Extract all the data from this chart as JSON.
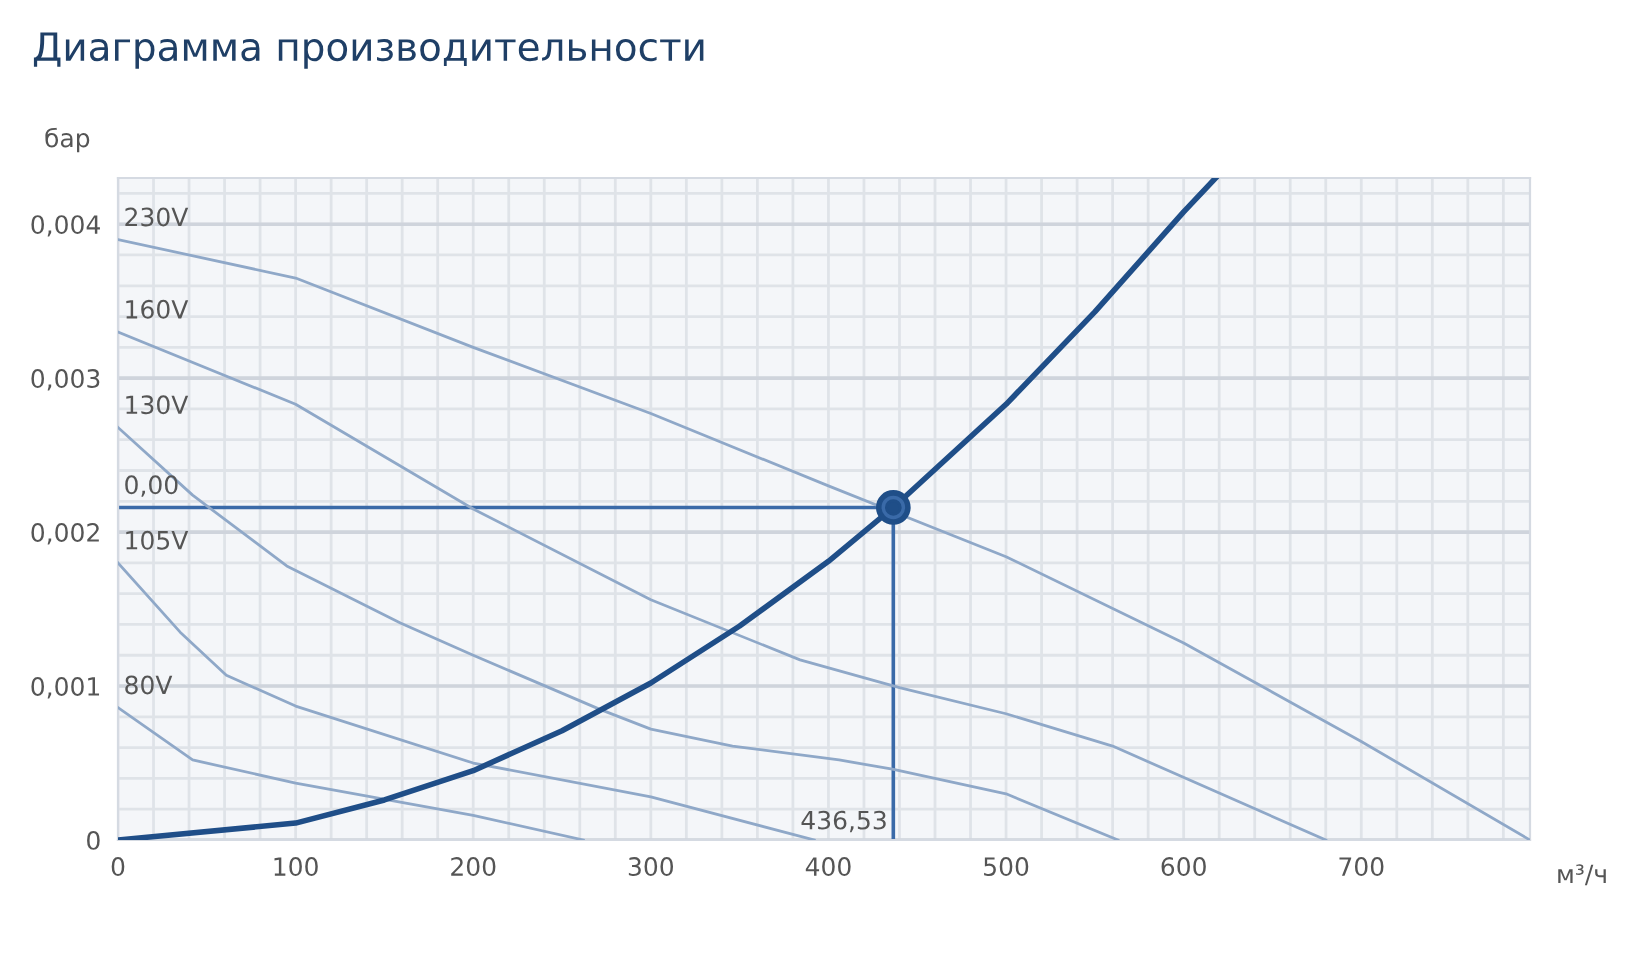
{
  "chart_data": {
    "type": "line",
    "title": "Диаграмма производительности",
    "xlabel": "м³/ч",
    "ylabel": "бар",
    "xlim": [
      0,
      795
    ],
    "ylim": [
      0,
      0.0043
    ],
    "xticks": [
      0,
      100,
      200,
      300,
      400,
      500,
      600,
      700
    ],
    "yticks": [
      0,
      {
        "value": 0.001,
        "label": "0,001"
      },
      {
        "value": 0.002,
        "label": "0,002"
      },
      {
        "value": 0.003,
        "label": "0,003"
      },
      {
        "value": 0.004,
        "label": "0,004"
      }
    ],
    "grid": true,
    "marker": "none",
    "line_style": "solid",
    "series": [
      {
        "name": "230V",
        "color": "#8fa8c8",
        "x": [
          0,
          100,
          200,
          300,
          400,
          500,
          600,
          700,
          795
        ],
        "values": [
          0.0039,
          0.00365,
          0.0032,
          0.00277,
          0.0023,
          0.00184,
          0.00128,
          0.00064,
          0
        ]
      },
      {
        "name": "160V",
        "color": "#8fa8c8",
        "x": [
          0,
          100,
          200,
          300,
          384,
          440,
          500,
          560,
          680
        ],
        "values": [
          0.0033,
          0.00283,
          0.00215,
          0.00156,
          0.00117,
          0.00099,
          0.00082,
          0.00061,
          0
        ]
      },
      {
        "name": "130V",
        "color": "#8fa8c8",
        "x": [
          0,
          42,
          95,
          159,
          200,
          271,
          300,
          346,
          406,
          436,
          500,
          563
        ],
        "values": [
          0.00268,
          0.00224,
          0.00178,
          0.00141,
          0.0012,
          0.00085,
          0.00072,
          0.00061,
          0.00052,
          0.00046,
          0.0003,
          0
        ]
      },
      {
        "name": "105V",
        "color": "#8fa8c8",
        "x": [
          0,
          35,
          61,
          100,
          200,
          300,
          392
        ],
        "values": [
          0.0018,
          0.00135,
          0.00107,
          0.00087,
          0.0005,
          0.00028,
          0
        ]
      },
      {
        "name": "80V",
        "color": "#8fa8c8",
        "x": [
          0,
          42,
          100,
          200,
          262
        ],
        "values": [
          0.00086,
          0.00052,
          0.00037,
          0.00016,
          0
        ]
      },
      {
        "color": "#1f4e88",
        "x": [
          0,
          100,
          150,
          200,
          250,
          300,
          350,
          400,
          436.53,
          500,
          550,
          600,
          618
        ],
        "values": [
          0,
          0.00011,
          0.00026,
          0.00045,
          0.00071,
          0.00102,
          0.00139,
          0.00181,
          0.00216,
          0.00283,
          0.00343,
          0.00408,
          0.0043
        ]
      },
      {
        "type": "scatter",
        "marker": "circle",
        "color": "#1f4e88",
        "x": [
          436.53
        ],
        "values": [
          0.00216
        ]
      }
    ],
    "ref_lines": [
      {
        "axis": "y",
        "value": 0.00216,
        "label": "0,00",
        "color": "#3a6aa8"
      },
      {
        "axis": "x",
        "value": 436.53,
        "label": "436,53",
        "color": "#3a6aa8"
      }
    ]
  }
}
